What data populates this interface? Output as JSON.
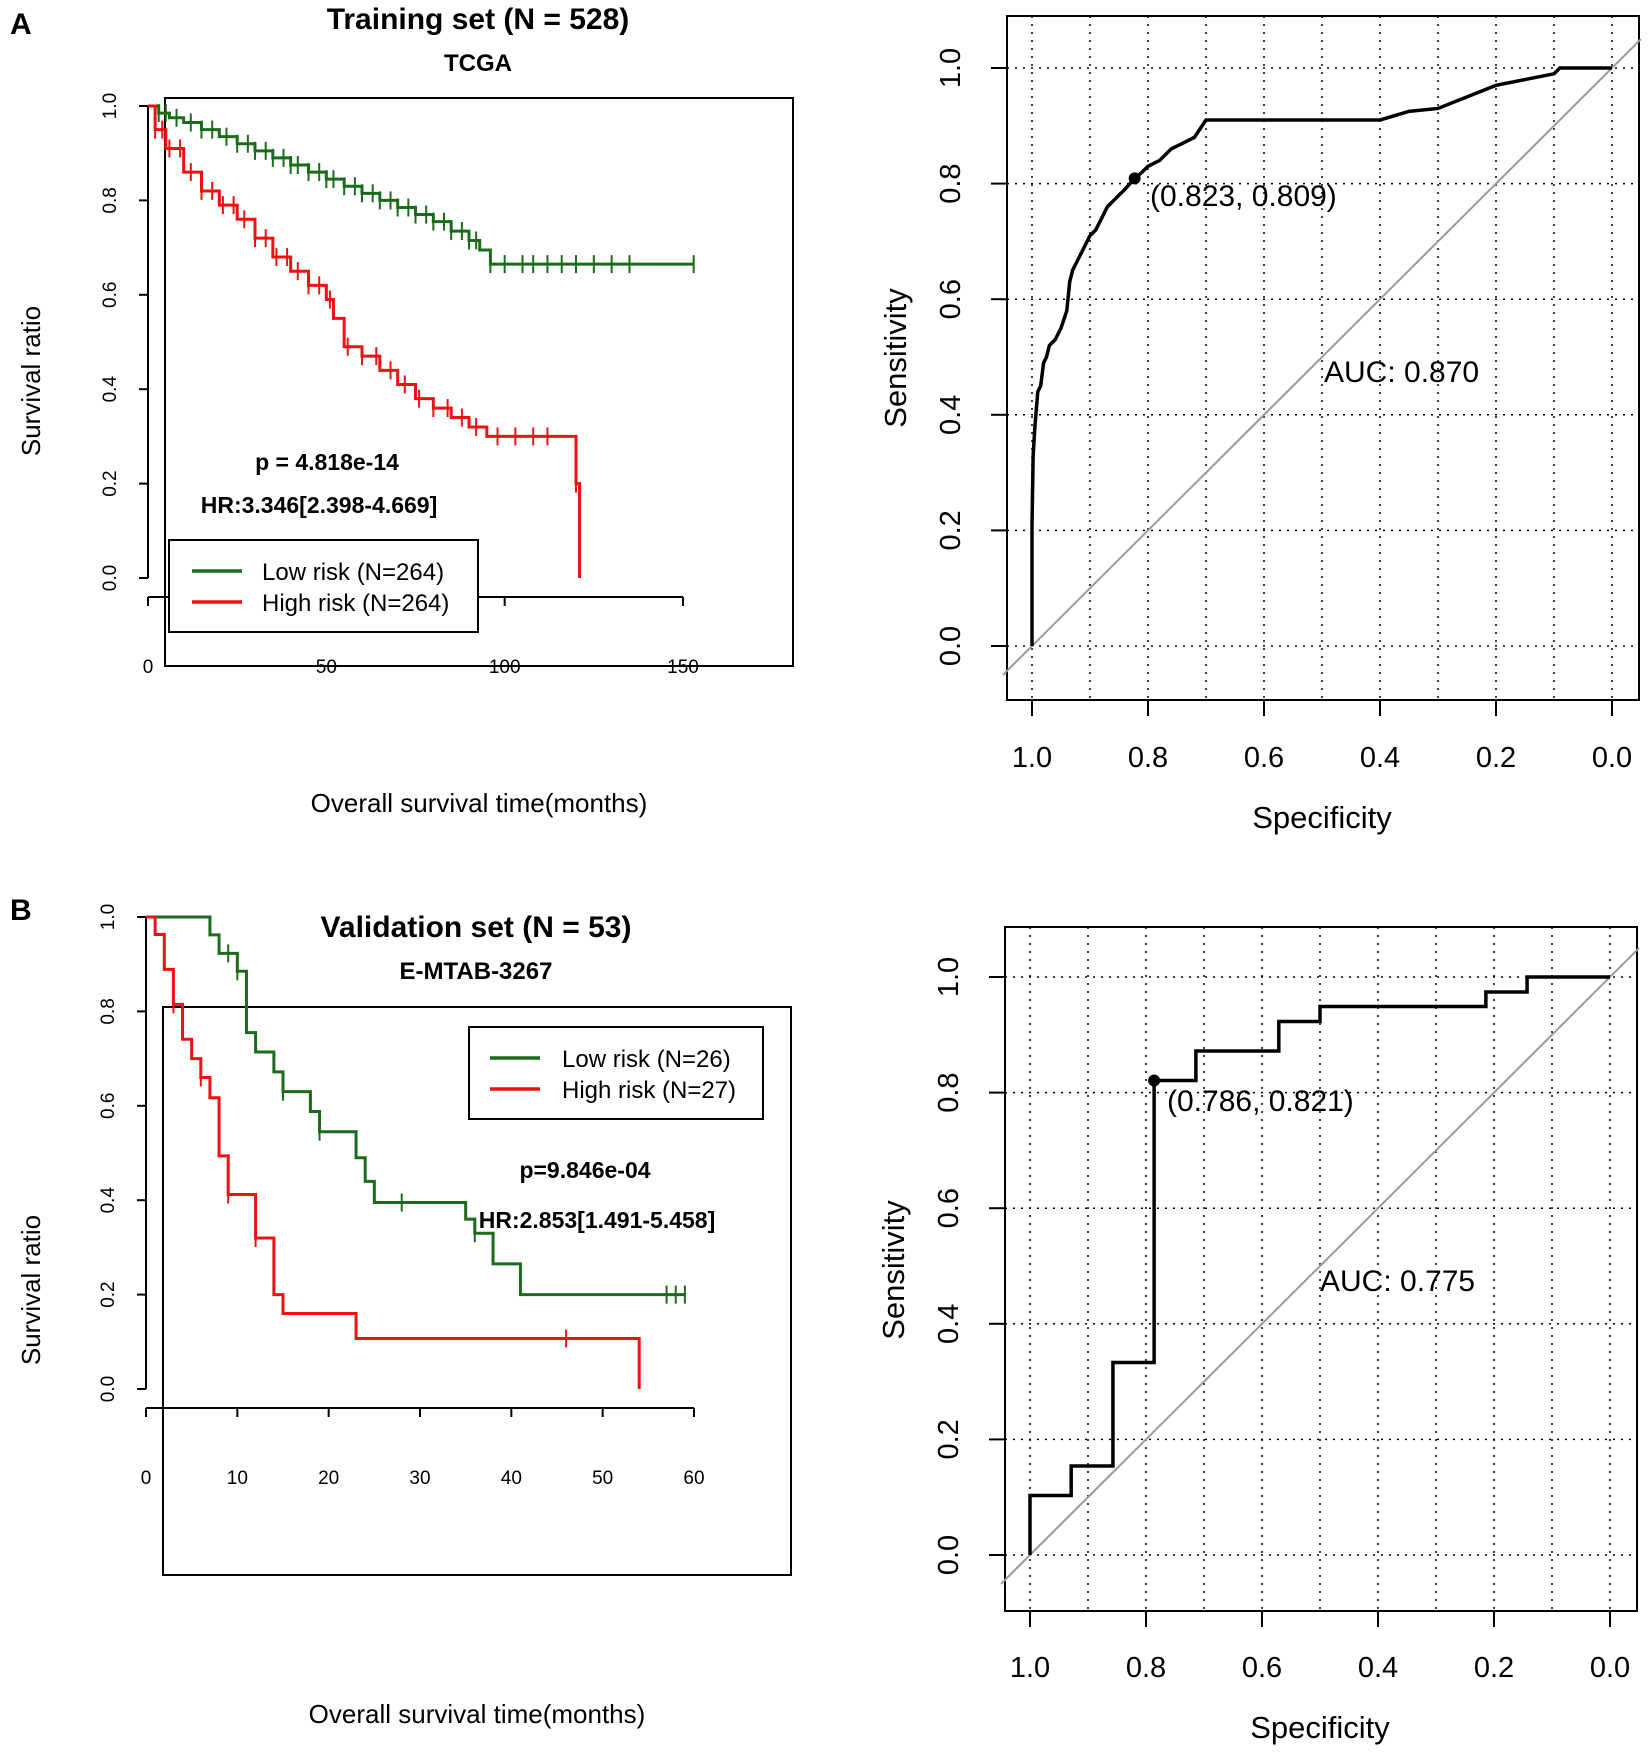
{
  "panel_labels": [
    "A",
    "B"
  ],
  "colors": {
    "low_risk": "#1a6b1a",
    "high_risk": "#ee1111",
    "roc_curve": "#000000",
    "diagonal": "#9a9a9a",
    "grid": "#000000"
  },
  "chart_data": [
    {
      "id": "km_training",
      "type": "line",
      "subtype": "kaplan-meier",
      "title": "Training set (N = 528)",
      "subtitle": "TCGA",
      "xlabel": "Overall survival time(months)",
      "ylabel": "Survival ratio",
      "xlim": [
        0,
        150
      ],
      "ylim": [
        0,
        1
      ],
      "xticks": [
        0,
        50,
        100,
        150
      ],
      "yticks": [
        0,
        0.2,
        0.4,
        0.6,
        0.8,
        1.0
      ],
      "ytick_labels": [
        "0.0",
        "0.2",
        "0.4",
        "0.6",
        "0.8",
        "1.0"
      ],
      "pvalue_text": "p = 4.818e-14",
      "hr_text": "HR:3.346[2.398-4.669]",
      "legend_position": "bottom-left",
      "series": [
        {
          "name": "Low risk (N=264)",
          "color": "#1a6b1a",
          "x": [
            0,
            3,
            6,
            10,
            15,
            20,
            25,
            30,
            35,
            40,
            45,
            50,
            55,
            60,
            65,
            70,
            75,
            80,
            85,
            90,
            93,
            96,
            100,
            110,
            120,
            130,
            140,
            153
          ],
          "y": [
            1.0,
            0.985,
            0.975,
            0.965,
            0.95,
            0.935,
            0.92,
            0.905,
            0.89,
            0.875,
            0.86,
            0.845,
            0.83,
            0.815,
            0.8,
            0.785,
            0.77,
            0.755,
            0.735,
            0.715,
            0.695,
            0.665,
            0.665,
            0.665,
            0.665,
            0.665,
            0.665,
            0.665
          ],
          "censor_x": [
            3,
            5,
            8,
            12,
            15,
            18,
            22,
            25,
            28,
            30,
            33,
            35,
            38,
            40,
            42,
            45,
            48,
            50,
            52,
            55,
            58,
            60,
            63,
            65,
            68,
            70,
            73,
            75,
            78,
            80,
            83,
            85,
            88,
            90,
            92,
            96,
            100,
            105,
            108,
            112,
            116,
            120,
            125,
            130,
            135,
            153
          ]
        },
        {
          "name": "High risk (N=264)",
          "color": "#ee1111",
          "x": [
            0,
            2,
            5,
            10,
            15,
            20,
            25,
            30,
            35,
            40,
            45,
            50,
            52,
            55,
            60,
            65,
            70,
            75,
            80,
            85,
            90,
            95,
            100,
            105,
            110,
            119,
            120,
            121
          ],
          "y": [
            1.0,
            0.95,
            0.91,
            0.86,
            0.82,
            0.79,
            0.76,
            0.72,
            0.68,
            0.65,
            0.62,
            0.59,
            0.55,
            0.49,
            0.47,
            0.44,
            0.41,
            0.38,
            0.36,
            0.34,
            0.32,
            0.3,
            0.3,
            0.3,
            0.3,
            0.3,
            0.2,
            0.0
          ],
          "censor_x": [
            2,
            4,
            6,
            9,
            12,
            15,
            18,
            21,
            24,
            27,
            30,
            33,
            36,
            39,
            42,
            45,
            48,
            51,
            56,
            60,
            64,
            68,
            72,
            76,
            80,
            84,
            88,
            92,
            98,
            103,
            108,
            112,
            120
          ]
        }
      ]
    },
    {
      "id": "roc_training",
      "type": "line",
      "subtype": "roc",
      "xlabel": "Specificity",
      "ylabel": "Sensitivity",
      "xlim": [
        1.0,
        0.0
      ],
      "ylim": [
        0,
        1
      ],
      "xticks": [
        1.0,
        0.8,
        0.6,
        0.4,
        0.2,
        0.0
      ],
      "xtick_labels": [
        "1.0",
        "0.8",
        "0.6",
        "0.4",
        "0.2",
        "0.0"
      ],
      "yticks": [
        0,
        0.2,
        0.4,
        0.6,
        0.8,
        1.0
      ],
      "ytick_labels": [
        "0.0",
        "0.2",
        "0.4",
        "0.6",
        "0.8",
        "1.0"
      ],
      "auc_text": "AUC: 0.870",
      "point": {
        "specificity": 0.823,
        "sensitivity": 0.809,
        "label": "(0.823, 0.809)"
      },
      "specificity": [
        1.0,
        1.0,
        0.998,
        0.995,
        0.99,
        0.985,
        0.98,
        0.975,
        0.97,
        0.96,
        0.95,
        0.94,
        0.935,
        0.93,
        0.92,
        0.91,
        0.9,
        0.89,
        0.88,
        0.87,
        0.86,
        0.85,
        0.84,
        0.823,
        0.81,
        0.8,
        0.78,
        0.76,
        0.74,
        0.72,
        0.7,
        0.6,
        0.5,
        0.4,
        0.35,
        0.3,
        0.25,
        0.2,
        0.1,
        0.09,
        0.0
      ],
      "sensitivity": [
        0.0,
        0.21,
        0.33,
        0.38,
        0.44,
        0.45,
        0.49,
        0.5,
        0.52,
        0.53,
        0.55,
        0.58,
        0.63,
        0.65,
        0.67,
        0.69,
        0.71,
        0.72,
        0.74,
        0.76,
        0.77,
        0.78,
        0.79,
        0.809,
        0.82,
        0.83,
        0.84,
        0.86,
        0.87,
        0.88,
        0.91,
        0.91,
        0.91,
        0.91,
        0.925,
        0.93,
        0.95,
        0.97,
        0.99,
        1.0,
        1.0
      ]
    },
    {
      "id": "km_validation",
      "type": "line",
      "subtype": "kaplan-meier",
      "title": "Validation set (N = 53)",
      "subtitle": "E-MTAB-3267",
      "xlabel": "Overall survival time(months)",
      "ylabel": "Survival ratio",
      "xlim": [
        0,
        60
      ],
      "ylim": [
        0,
        1
      ],
      "xticks": [
        0,
        10,
        20,
        30,
        40,
        50,
        60
      ],
      "yticks": [
        0,
        0.2,
        0.4,
        0.6,
        0.8,
        1.0
      ],
      "ytick_labels": [
        "0.0",
        "0.2",
        "0.4",
        "0.6",
        "0.8",
        "1.0"
      ],
      "pvalue_text": "p=9.846e-04",
      "hr_text": "HR:2.853[1.491-5.458]",
      "legend_position": "top-right",
      "series": [
        {
          "name": "Low risk (N=26)",
          "color": "#1a6b1a",
          "x": [
            0,
            7,
            8,
            10,
            11,
            12,
            14,
            15,
            18,
            19,
            23,
            24,
            25,
            35,
            36,
            38,
            41,
            59
          ],
          "y": [
            1.0,
            0.962,
            0.923,
            0.885,
            0.755,
            0.714,
            0.672,
            0.63,
            0.588,
            0.545,
            0.49,
            0.44,
            0.395,
            0.36,
            0.33,
            0.265,
            0.2,
            0.2
          ],
          "censor_x": [
            9,
            10,
            15,
            19,
            28,
            36,
            57,
            58,
            59
          ]
        },
        {
          "name": "High risk (N=27)",
          "color": "#ee1111",
          "x": [
            0,
            1,
            2,
            3,
            4,
            5,
            6,
            7,
            8,
            9,
            12,
            14,
            15,
            16,
            23,
            54,
            54
          ],
          "y": [
            1.0,
            0.963,
            0.889,
            0.815,
            0.741,
            0.7,
            0.66,
            0.617,
            0.494,
            0.412,
            0.32,
            0.2,
            0.16,
            0.16,
            0.107,
            0.107,
            0.0
          ],
          "censor_x": [
            3,
            6,
            9,
            12,
            46
          ]
        }
      ]
    },
    {
      "id": "roc_validation",
      "type": "line",
      "subtype": "roc",
      "xlabel": "Specificity",
      "ylabel": "Sensitivity",
      "xlim": [
        1.0,
        0.0
      ],
      "ylim": [
        0,
        1
      ],
      "xticks": [
        1.0,
        0.8,
        0.6,
        0.4,
        0.2,
        0.0
      ],
      "xtick_labels": [
        "1.0",
        "0.8",
        "0.6",
        "0.4",
        "0.2",
        "0.0"
      ],
      "yticks": [
        0,
        0.2,
        0.4,
        0.6,
        0.8,
        1.0
      ],
      "ytick_labels": [
        "0.0",
        "0.2",
        "0.4",
        "0.6",
        "0.8",
        "1.0"
      ],
      "auc_text": "AUC: 0.775",
      "point": {
        "specificity": 0.786,
        "sensitivity": 0.821,
        "label": "(0.786, 0.821)"
      },
      "specificity": [
        1.0,
        1.0,
        0.929,
        0.929,
        0.857,
        0.857,
        0.786,
        0.786,
        0.786,
        0.786,
        0.714,
        0.714,
        0.571,
        0.571,
        0.5,
        0.5,
        0.214,
        0.214,
        0.143,
        0.143,
        0.0
      ],
      "sensitivity": [
        0.0,
        0.103,
        0.103,
        0.154,
        0.154,
        0.333,
        0.333,
        0.6,
        0.821,
        0.821,
        0.821,
        0.872,
        0.872,
        0.923,
        0.923,
        0.949,
        0.949,
        0.974,
        0.974,
        1.0,
        1.0
      ]
    }
  ]
}
